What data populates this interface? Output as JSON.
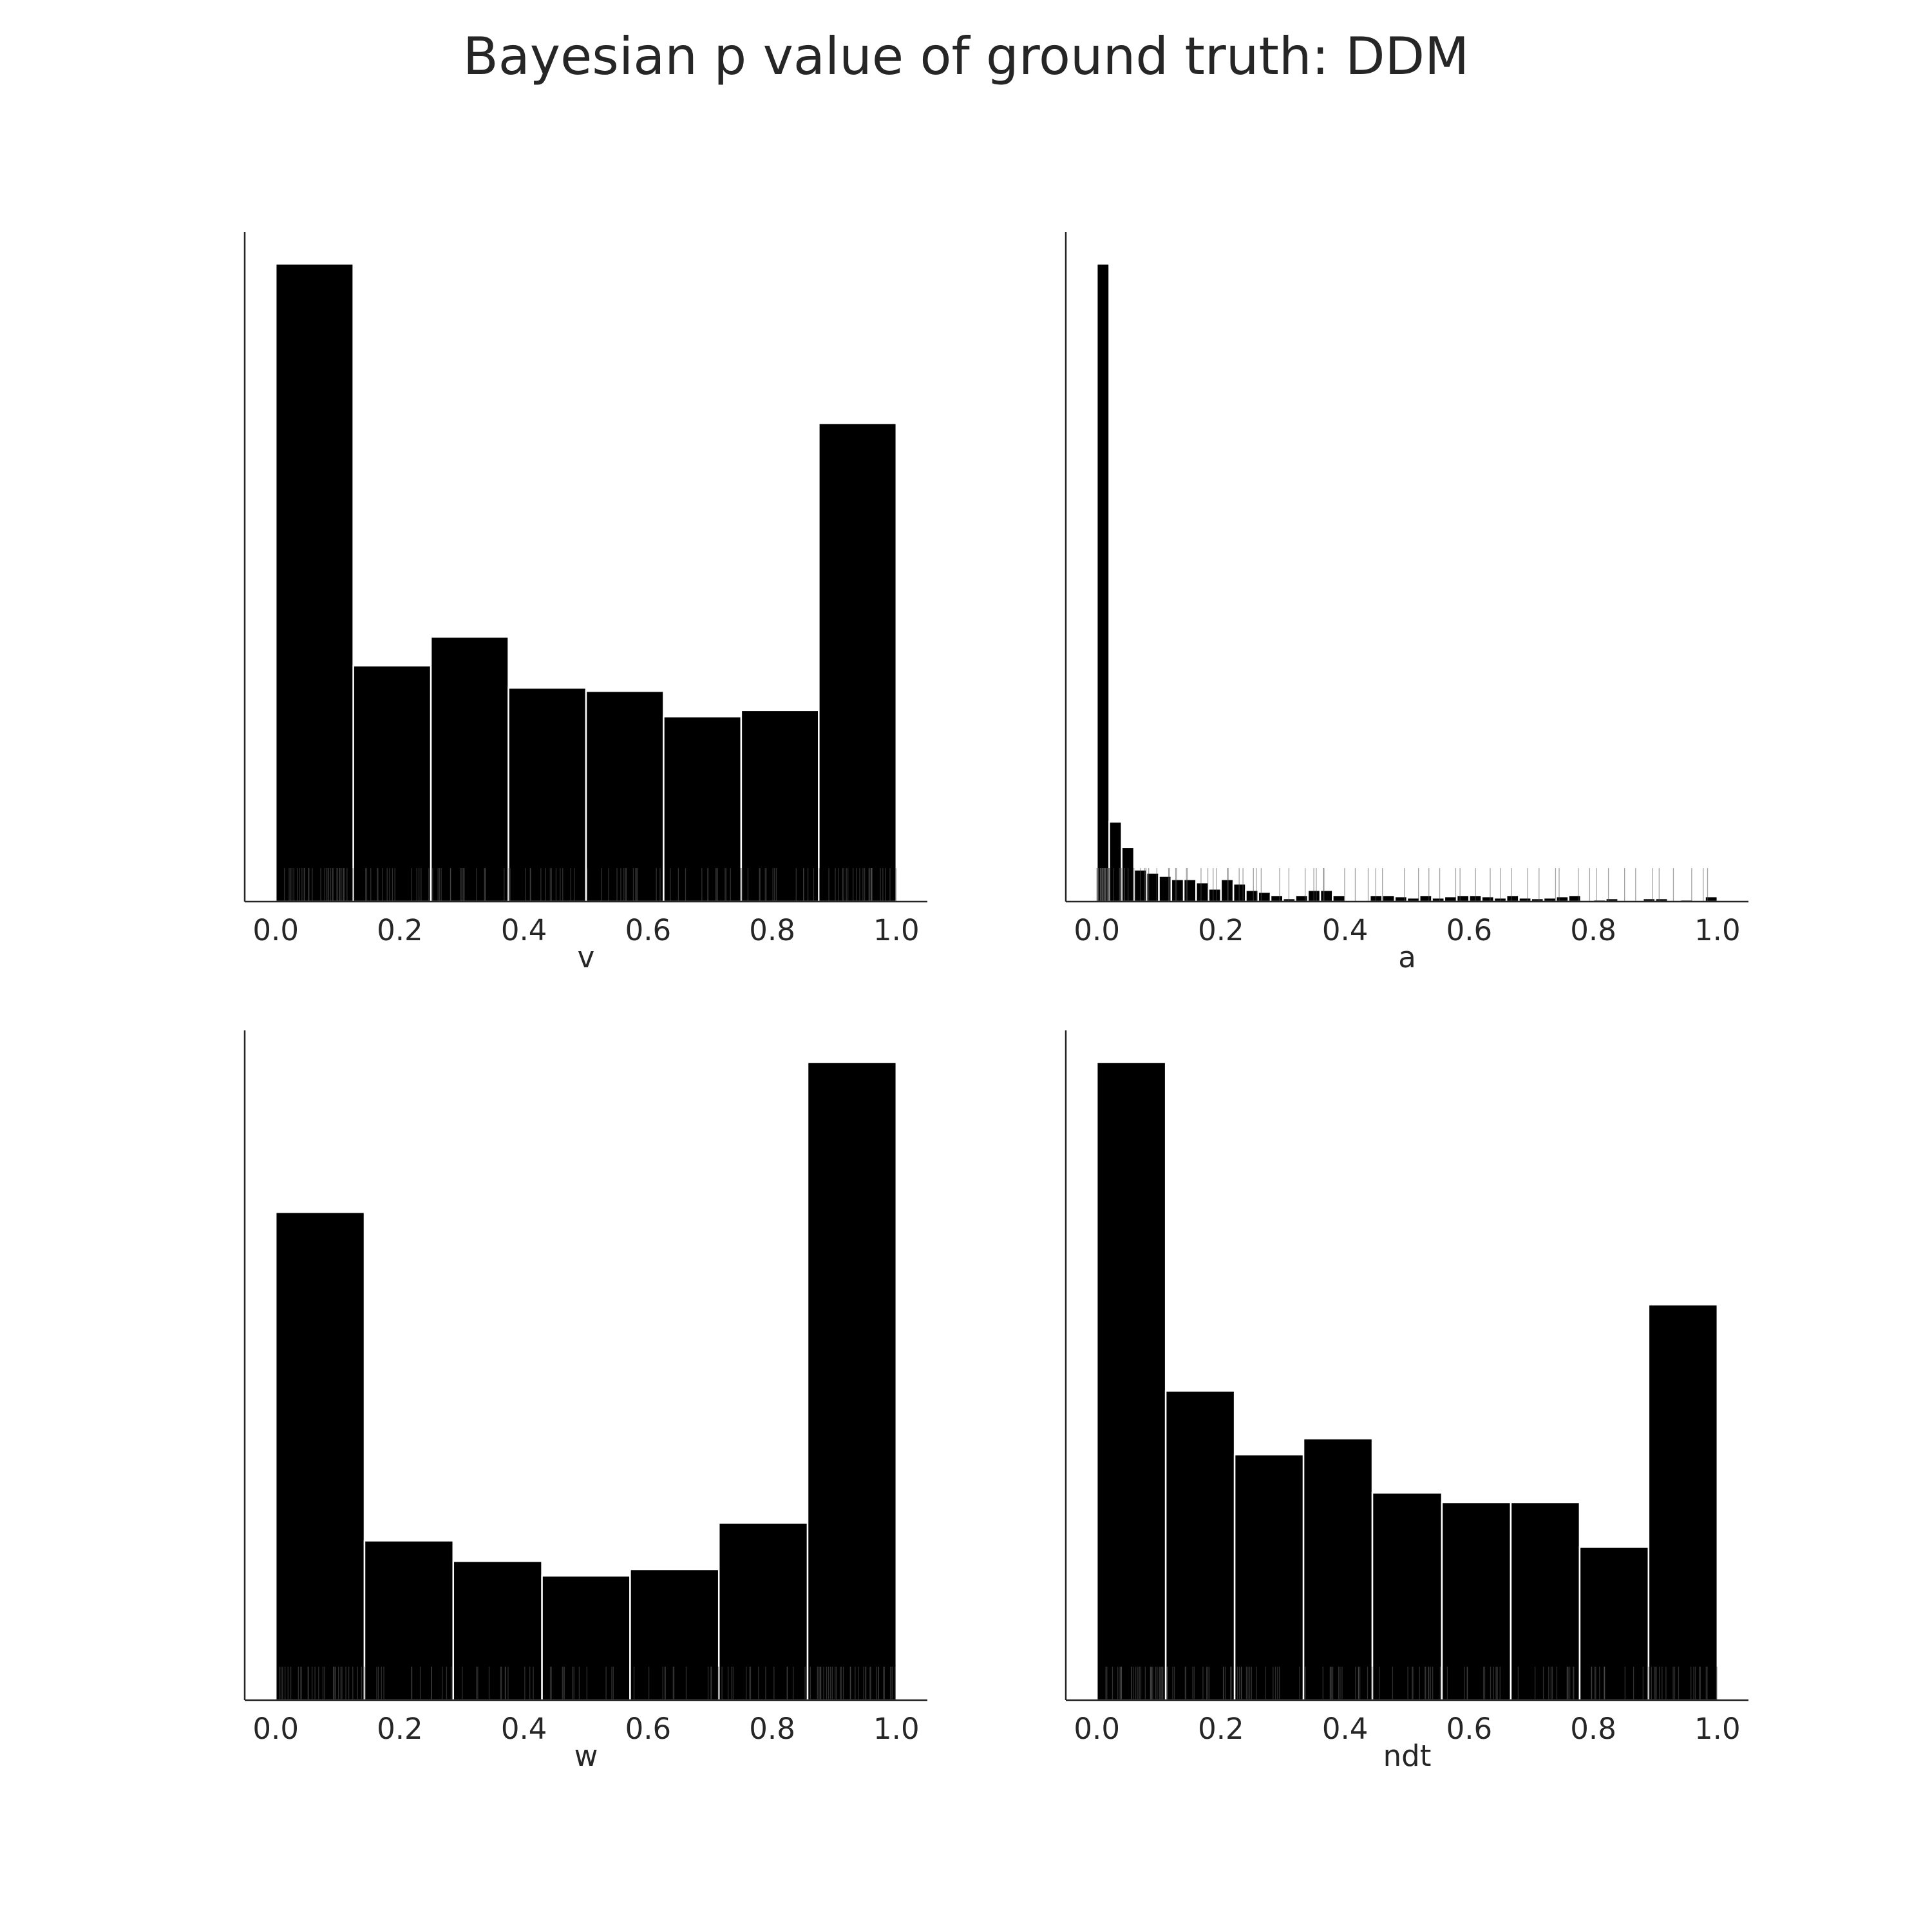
{
  "figure": {
    "title": "Bayesian p value of ground truth: DDM"
  },
  "chart_data": [
    {
      "type": "bar",
      "xlabel": "v",
      "xlim": [
        -0.05,
        1.05
      ],
      "xticks": [
        "0.0",
        "0.2",
        "0.4",
        "0.6",
        "0.8",
        "1.0"
      ],
      "yaxis_ticks_shown": false,
      "grid": false,
      "bin_edges": [
        0.0,
        0.125,
        0.25,
        0.375,
        0.5,
        0.625,
        0.75,
        0.875,
        1.0
      ],
      "values": [
        1.0,
        0.37,
        0.415,
        0.335,
        0.33,
        0.29,
        0.3,
        0.75
      ],
      "ylim": [
        0,
        1.05
      ]
    },
    {
      "type": "bar",
      "xlabel": "a",
      "xlim": [
        -0.05,
        1.05
      ],
      "xticks": [
        "0.0",
        "0.2",
        "0.4",
        "0.6",
        "0.8",
        "1.0"
      ],
      "yaxis_ticks_shown": false,
      "grid": false,
      "bin_edges": [
        0.0,
        0.02,
        0.04,
        0.06,
        0.08,
        0.1,
        0.12,
        0.14,
        0.16,
        0.18,
        0.2,
        0.22,
        0.24,
        0.26,
        0.28,
        0.3,
        0.32,
        0.34,
        0.36,
        0.38,
        0.4,
        0.42,
        0.44,
        0.46,
        0.48,
        0.5,
        0.52,
        0.54,
        0.56,
        0.58,
        0.6,
        0.62,
        0.64,
        0.66,
        0.68,
        0.7,
        0.72,
        0.74,
        0.76,
        0.78,
        0.8,
        0.82,
        0.84,
        0.86,
        0.88,
        0.9,
        0.92,
        0.94,
        0.96,
        0.98,
        1.0
      ],
      "values": [
        1.0,
        0.125,
        0.085,
        0.05,
        0.045,
        0.04,
        0.035,
        0.035,
        0.03,
        0.02,
        0.035,
        0.028,
        0.018,
        0.015,
        0.01,
        0.005,
        0.01,
        0.018,
        0.018,
        0.01,
        0.0,
        0.0,
        0.01,
        0.01,
        0.008,
        0.006,
        0.01,
        0.006,
        0.008,
        0.01,
        0.01,
        0.008,
        0.006,
        0.01,
        0.006,
        0.005,
        0.006,
        0.008,
        0.01,
        0.0,
        0.003,
        0.005,
        0.0,
        0.0,
        0.005,
        0.005,
        0.0,
        0.003,
        0.0,
        0.008
      ],
      "ylim": [
        0,
        1.05
      ]
    },
    {
      "type": "bar",
      "xlabel": "w",
      "xlim": [
        -0.05,
        1.05
      ],
      "xticks": [
        "0.0",
        "0.2",
        "0.4",
        "0.6",
        "0.8",
        "1.0"
      ],
      "yaxis_ticks_shown": false,
      "grid": false,
      "bin_edges": [
        0.0,
        0.143,
        0.286,
        0.429,
        0.571,
        0.714,
        0.857,
        1.0
      ],
      "values": [
        0.765,
        0.25,
        0.218,
        0.195,
        0.205,
        0.278,
        1.0
      ],
      "ylim": [
        0,
        1.05
      ]
    },
    {
      "type": "bar",
      "xlabel": "ndt",
      "xlim": [
        -0.05,
        1.05
      ],
      "xticks": [
        "0.0",
        "0.2",
        "0.4",
        "0.6",
        "0.8",
        "1.0"
      ],
      "yaxis_ticks_shown": false,
      "grid": false,
      "bin_edges": [
        0.0,
        0.111,
        0.222,
        0.333,
        0.444,
        0.556,
        0.667,
        0.778,
        0.889,
        1.0
      ],
      "values": [
        1.0,
        0.485,
        0.385,
        0.41,
        0.325,
        0.31,
        0.31,
        0.24,
        0.62
      ],
      "ylim": [
        0,
        1.05
      ]
    }
  ]
}
